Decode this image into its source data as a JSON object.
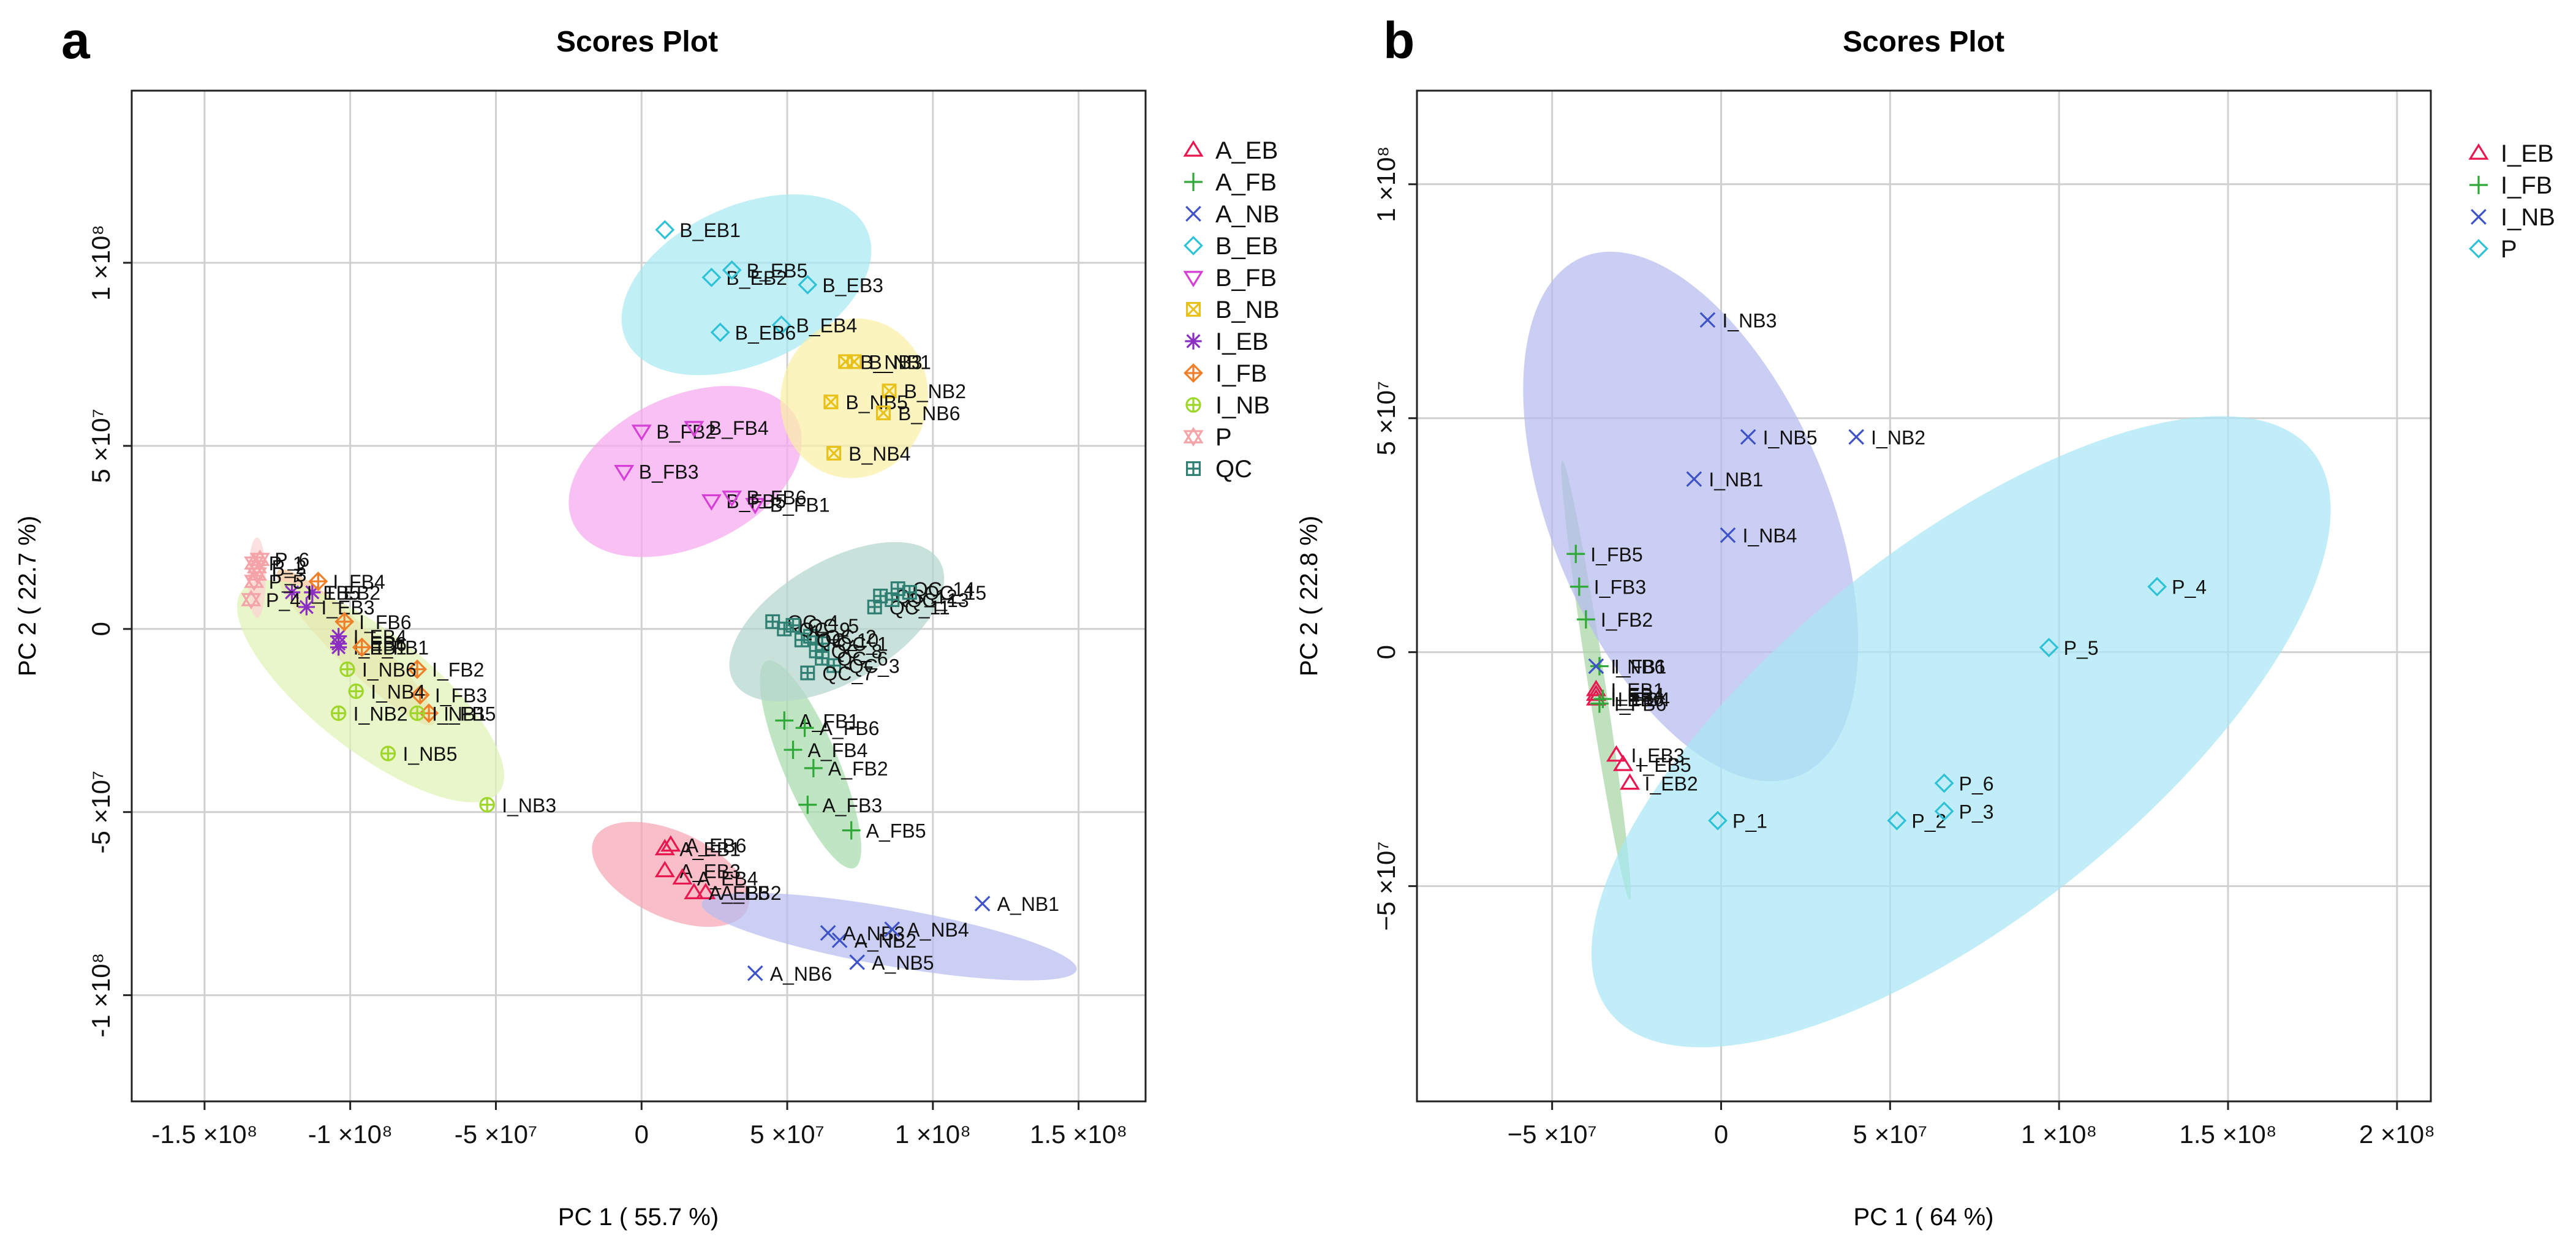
{
  "panels": [
    {
      "letter": "a",
      "title": "Scores Plot",
      "xlabel": "PC 1 ( 55.7 %)",
      "ylabel": "PC 2 ( 22.7 %)",
      "xticks": [
        {
          "v": -150000000,
          "label": "-1.5 ×10⁸"
        },
        {
          "v": -100000000,
          "label": "-1 ×10⁸"
        },
        {
          "v": -50000000,
          "label": "-5 ×10⁷"
        },
        {
          "v": 0,
          "label": "0"
        },
        {
          "v": 50000000,
          "label": "5 ×10⁷"
        },
        {
          "v": 100000000,
          "label": "1 ×10⁸"
        },
        {
          "v": 150000000,
          "label": "1.5 ×10⁸"
        }
      ],
      "yticks": [
        {
          "v": -100000000,
          "label": "-1 ×10⁸"
        },
        {
          "v": -50000000,
          "label": "-5 ×10⁷"
        },
        {
          "v": 0,
          "label": "0"
        },
        {
          "v": 50000000,
          "label": "5 ×10⁷"
        },
        {
          "v": 100000000,
          "label": "1 ×10⁸"
        }
      ],
      "legend": [
        {
          "name": "A_EB",
          "marker": "triangle",
          "color": "#e8174f"
        },
        {
          "name": "A_FB",
          "marker": "plus",
          "color": "#2ea836"
        },
        {
          "name": "A_NB",
          "marker": "cross",
          "color": "#3f53c9"
        },
        {
          "name": "B_EB",
          "marker": "diamond",
          "color": "#2fc2d6"
        },
        {
          "name": "B_FB",
          "marker": "tri-down",
          "color": "#d63fd6"
        },
        {
          "name": "B_NB",
          "marker": "box-x",
          "color": "#e8c21a"
        },
        {
          "name": "I_EB",
          "marker": "star",
          "color": "#8b2fc2"
        },
        {
          "name": "I_FB",
          "marker": "diamond-plus",
          "color": "#f07f2a"
        },
        {
          "name": "I_NB",
          "marker": "circle-plus",
          "color": "#9ed62a"
        },
        {
          "name": "P",
          "marker": "star-tri",
          "color": "#f4a3a8"
        },
        {
          "name": "QC",
          "marker": "box-plus",
          "color": "#2f7f73"
        }
      ]
    },
    {
      "letter": "b",
      "title": "Scores Plot",
      "xlabel": "PC 1 ( 64 %)",
      "ylabel": "PC 2 ( 22.8 %)",
      "xticks": [
        {
          "v": -50000000,
          "label": "−5 ×10⁷"
        },
        {
          "v": 0,
          "label": "0"
        },
        {
          "v": 50000000,
          "label": "5 ×10⁷"
        },
        {
          "v": 100000000,
          "label": "1 ×10⁸"
        },
        {
          "v": 150000000,
          "label": "1.5 ×10⁸"
        },
        {
          "v": 200000000,
          "label": "2 ×10⁸"
        }
      ],
      "yticks": [
        {
          "v": -50000000,
          "label": "−5 ×10⁷"
        },
        {
          "v": 0,
          "label": "0"
        },
        {
          "v": 50000000,
          "label": "5 ×10⁷"
        },
        {
          "v": 100000000,
          "label": "1 ×10⁸"
        }
      ],
      "legend": [
        {
          "name": "I_EB",
          "marker": "triangle",
          "color": "#e8174f"
        },
        {
          "name": "I_FB",
          "marker": "plus",
          "color": "#2ea836"
        },
        {
          "name": "I_NB",
          "marker": "cross",
          "color": "#3f53c9"
        },
        {
          "name": "P",
          "marker": "diamond",
          "color": "#2fc2d6"
        }
      ]
    }
  ],
  "chart_data": [
    {
      "type": "scatter",
      "title": "Scores Plot",
      "xlabel": "PC 1 ( 55.7 %)",
      "ylabel": "PC 2 ( 22.7 %)",
      "xlim": [
        -175000000,
        173000000
      ],
      "ylim": [
        -129000000,
        147000000
      ],
      "grid": true,
      "legend_position": "right",
      "series": [
        {
          "name": "A_EB",
          "points": [
            {
              "label": "A_EB1",
              "x": 8000000,
              "y": -60000000
            },
            {
              "label": "A_EB2",
              "x": 22000000,
              "y": -72000000
            },
            {
              "label": "A_EB3",
              "x": 8000000,
              "y": -66000000
            },
            {
              "label": "A_EB4",
              "x": 14000000,
              "y": -68000000
            },
            {
              "label": "A_EB5",
              "x": 18000000,
              "y": -72000000
            },
            {
              "label": "A_EB6",
              "x": 10000000,
              "y": -59000000
            }
          ],
          "ellipse": {
            "cx": 10000000,
            "cy": -67000000,
            "rx": 28000000,
            "ry": 12000000,
            "angle": -20,
            "fill": "#f7a6b4"
          }
        },
        {
          "name": "A_FB",
          "points": [
            {
              "label": "A_FB1",
              "x": 49000000,
              "y": -25000000
            },
            {
              "label": "A_FB2",
              "x": 59000000,
              "y": -38000000
            },
            {
              "label": "A_FB3",
              "x": 57000000,
              "y": -48000000
            },
            {
              "label": "A_FB4",
              "x": 52000000,
              "y": -33000000
            },
            {
              "label": "A_FB5",
              "x": 72000000,
              "y": -55000000
            },
            {
              "label": "A_FB6",
              "x": 56000000,
              "y": -27000000
            }
          ],
          "ellipse": {
            "cx": 58000000,
            "cy": -37000000,
            "rx": 32000000,
            "ry": 9000000,
            "angle": -62,
            "fill": "#a6dbaa"
          }
        },
        {
          "name": "A_NB",
          "points": [
            {
              "label": "A_NB1",
              "x": 117000000,
              "y": -75000000
            },
            {
              "label": "A_NB2",
              "x": 68000000,
              "y": -85000000
            },
            {
              "label": "A_NB3",
              "x": 64000000,
              "y": -83000000
            },
            {
              "label": "A_NB4",
              "x": 86000000,
              "y": -82000000
            },
            {
              "label": "A_NB5",
              "x": 74000000,
              "y": -91000000
            },
            {
              "label": "A_NB6",
              "x": 39000000,
              "y": -94000000
            }
          ],
          "ellipse": {
            "cx": 85000000,
            "cy": -84000000,
            "rx": 65000000,
            "ry": 8000000,
            "angle": -8,
            "fill": "#b7bdf0"
          }
        },
        {
          "name": "B_EB",
          "points": [
            {
              "label": "B_EB1",
              "x": 8000000,
              "y": 109000000
            },
            {
              "label": "B_EB2",
              "x": 24000000,
              "y": 96000000
            },
            {
              "label": "B_EB3",
              "x": 57000000,
              "y": 94000000
            },
            {
              "label": "B_EB4",
              "x": 48000000,
              "y": 83000000
            },
            {
              "label": "B_EB5",
              "x": 31000000,
              "y": 98000000
            },
            {
              "label": "B_EB6",
              "x": 27000000,
              "y": 81000000
            }
          ],
          "ellipse": {
            "cx": 36000000,
            "cy": 94000000,
            "rx": 44000000,
            "ry": 22000000,
            "angle": 20,
            "fill": "#a7e9f2"
          }
        },
        {
          "name": "B_FB",
          "points": [
            {
              "label": "B_FB1",
              "x": 39000000,
              "y": 34000000
            },
            {
              "label": "B_FB2",
              "x": 0,
              "y": 54000000
            },
            {
              "label": "B_FB3",
              "x": -6000000,
              "y": 43000000
            },
            {
              "label": "B_FB4",
              "x": 18000000,
              "y": 55000000
            },
            {
              "label": "B_FB5",
              "x": 24000000,
              "y": 35000000
            },
            {
              "label": "B_FB6",
              "x": 31000000,
              "y": 36000000
            }
          ],
          "ellipse": {
            "cx": 15000000,
            "cy": 43000000,
            "rx": 41000000,
            "ry": 21000000,
            "angle": 20,
            "fill": "#f6a7f0"
          }
        },
        {
          "name": "B_NB",
          "points": [
            {
              "label": "B_NB1",
              "x": 73000000,
              "y": 73000000
            },
            {
              "label": "B_NB2",
              "x": 85000000,
              "y": 65000000
            },
            {
              "label": "B_NB3",
              "x": 70000000,
              "y": 73000000
            },
            {
              "label": "B_NB4",
              "x": 66000000,
              "y": 48000000
            },
            {
              "label": "B_NB5",
              "x": 65000000,
              "y": 62000000
            },
            {
              "label": "B_NB6",
              "x": 83000000,
              "y": 59000000
            }
          ],
          "ellipse": {
            "cx": 73000000,
            "cy": 63000000,
            "rx": 25000000,
            "ry": 22000000,
            "angle": -10,
            "fill": "#faf0a6"
          }
        },
        {
          "name": "I_EB",
          "points": [
            {
              "label": "I_EB1",
              "x": -104000000,
              "y": -5000000
            },
            {
              "label": "I_EB2",
              "x": -113000000,
              "y": 10000000
            },
            {
              "label": "I_EB3",
              "x": -115000000,
              "y": 6000000
            },
            {
              "label": "I_EB4",
              "x": -104000000,
              "y": -2000000
            },
            {
              "label": "I_EB5",
              "x": -120000000,
              "y": 10000000
            },
            {
              "label": "I_EB6",
              "x": -104000000,
              "y": -4000000
            }
          ],
          "ellipse": null
        },
        {
          "name": "I_FB",
          "points": [
            {
              "label": "I_FB1",
              "x": -96000000,
              "y": -5000000
            },
            {
              "label": "I_FB2",
              "x": -77000000,
              "y": -11000000
            },
            {
              "label": "I_FB3",
              "x": -76000000,
              "y": -18000000
            },
            {
              "label": "I_FB4",
              "x": -111000000,
              "y": 13000000
            },
            {
              "label": "I_FB5",
              "x": -73000000,
              "y": -23000000
            },
            {
              "label": "I_FB6",
              "x": -102000000,
              "y": 2000000
            }
          ],
          "ellipse": {
            "cx": -98000000,
            "cy": -5000000,
            "rx": 34000000,
            "ry": 6000000,
            "angle": -38,
            "fill": "#f9c79c"
          }
        },
        {
          "name": "I_NB",
          "points": [
            {
              "label": "I_NB1",
              "x": -77000000,
              "y": -23000000
            },
            {
              "label": "I_NB2",
              "x": -104000000,
              "y": -23000000
            },
            {
              "label": "I_NB3",
              "x": -53000000,
              "y": -48000000
            },
            {
              "label": "I_NB4",
              "x": -98000000,
              "y": -17000000
            },
            {
              "label": "I_NB5",
              "x": -87000000,
              "y": -34000000
            },
            {
              "label": "I_NB6",
              "x": -101000000,
              "y": -11000000
            }
          ],
          "ellipse": {
            "cx": -93000000,
            "cy": -17000000,
            "rx": 52000000,
            "ry": 17000000,
            "angle": -32,
            "fill": "#dff2b6"
          }
        },
        {
          "name": "P",
          "points": [
            {
              "label": "P_1",
              "x": -133000000,
              "y": 18000000
            },
            {
              "label": "P_2",
              "x": -132000000,
              "y": 17000000
            },
            {
              "label": "P_3",
              "x": -132000000,
              "y": 15000000
            },
            {
              "label": "P_4",
              "x": -134000000,
              "y": 8000000
            },
            {
              "label": "P_5",
              "x": -133000000,
              "y": 13000000
            },
            {
              "label": "P_6",
              "x": -131000000,
              "y": 19000000
            }
          ],
          "ellipse": {
            "cx": -132000000,
            "cy": 14000000,
            "rx": 3000000,
            "ry": 11000000,
            "angle": 0,
            "fill": "#fbd3d3"
          }
        },
        {
          "name": "QC",
          "points": [
            {
              "label": "QC_1",
              "x": 62000000,
              "y": -4000000
            },
            {
              "label": "QC_2",
              "x": 58000000,
              "y": -2000000
            },
            {
              "label": "QC_3",
              "x": 66000000,
              "y": -10000000
            },
            {
              "label": "QC_4",
              "x": 45000000,
              "y": 2000000
            },
            {
              "label": "QC_5",
              "x": 52000000,
              "y": 1000000
            },
            {
              "label": "QC_6",
              "x": 62000000,
              "y": -8000000
            },
            {
              "label": "QC_7",
              "x": 57000000,
              "y": -12000000
            },
            {
              "label": "QC_8",
              "x": 60000000,
              "y": -6000000
            },
            {
              "label": "QC_9",
              "x": 49000000,
              "y": 0
            },
            {
              "label": "QC_10",
              "x": 55000000,
              "y": -3000000
            },
            {
              "label": "QC_11",
              "x": 80000000,
              "y": 6000000
            },
            {
              "label": "QC_12",
              "x": 82000000,
              "y": 9000000
            },
            {
              "label": "QC_13",
              "x": 86000000,
              "y": 8000000
            },
            {
              "label": "QC_14",
              "x": 88000000,
              "y": 11000000
            },
            {
              "label": "QC_15",
              "x": 92000000,
              "y": 10000000
            }
          ],
          "ellipse": {
            "cx": 67000000,
            "cy": 2000000,
            "rx": 39000000,
            "ry": 17000000,
            "angle": 25,
            "fill": "#b4d6cd"
          }
        }
      ]
    },
    {
      "type": "scatter",
      "title": "Scores Plot",
      "xlabel": "PC 1 ( 64 %)",
      "ylabel": "PC 2 ( 22.8 %)",
      "xlim": [
        -90000000,
        210000000
      ],
      "ylim": [
        -96000000,
        120000000
      ],
      "grid": true,
      "legend_position": "top-right",
      "series": [
        {
          "name": "I_EB",
          "points": [
            {
              "label": "I_EB1",
              "x": -37000000,
              "y": -8000000
            },
            {
              "label": "I_EB2",
              "x": -27000000,
              "y": -28000000
            },
            {
              "label": "I_EB3",
              "x": -31000000,
              "y": -22000000
            },
            {
              "label": "I_EB4",
              "x": -37000000,
              "y": -9000000
            },
            {
              "label": "I_EB5",
              "x": -29000000,
              "y": -24000000
            },
            {
              "label": "I_EB6",
              "x": -37000000,
              "y": -10000000
            }
          ],
          "ellipse": null
        },
        {
          "name": "I_FB",
          "points": [
            {
              "label": "I_FB1",
              "x": -36000000,
              "y": -3000000
            },
            {
              "label": "I_FB2",
              "x": -40000000,
              "y": 7000000
            },
            {
              "label": "I_FB3",
              "x": -42000000,
              "y": 14000000
            },
            {
              "label": "I_FB4",
              "x": -35000000,
              "y": -10000000
            },
            {
              "label": "I_FB5",
              "x": -43000000,
              "y": 21000000
            },
            {
              "label": "I_FB6",
              "x": -36000000,
              "y": -11000000
            }
          ],
          "ellipse": {
            "cx": -37000000,
            "cy": -6000000,
            "rx": 48000000,
            "ry": 2500000,
            "angle": -78,
            "fill": "#a6d6a3"
          }
        },
        {
          "name": "I_NB",
          "points": [
            {
              "label": "I_NB1",
              "x": -8000000,
              "y": 37000000
            },
            {
              "label": "I_NB2",
              "x": 40000000,
              "y": 46000000
            },
            {
              "label": "I_NB3",
              "x": -4000000,
              "y": 71000000
            },
            {
              "label": "I_NB4",
              "x": 2000000,
              "y": 25000000
            },
            {
              "label": "I_NB5",
              "x": 8000000,
              "y": 46000000
            },
            {
              "label": "I_NB6",
              "x": -37000000,
              "y": -3000000
            }
          ],
          "ellipse": {
            "cx": -9000000,
            "cy": 29000000,
            "rx": 64000000,
            "ry": 37000000,
            "angle": -60,
            "fill": "#b7bbee"
          }
        },
        {
          "name": "P",
          "points": [
            {
              "label": "P_1",
              "x": -1000000,
              "y": -36000000
            },
            {
              "label": "P_2",
              "x": 52000000,
              "y": -36000000
            },
            {
              "label": "P_3",
              "x": 66000000,
              "y": -34000000
            },
            {
              "label": "P_4",
              "x": 129000000,
              "y": 14000000
            },
            {
              "label": "P_5",
              "x": 97000000,
              "y": 1000000
            },
            {
              "label": "P_6",
              "x": 66000000,
              "y": -28000000
            }
          ],
          "ellipse": {
            "cx": 71000000,
            "cy": -17000000,
            "rx": 120000000,
            "ry": 42000000,
            "angle": 30,
            "fill": "#a7e6f4"
          }
        }
      ]
    }
  ]
}
